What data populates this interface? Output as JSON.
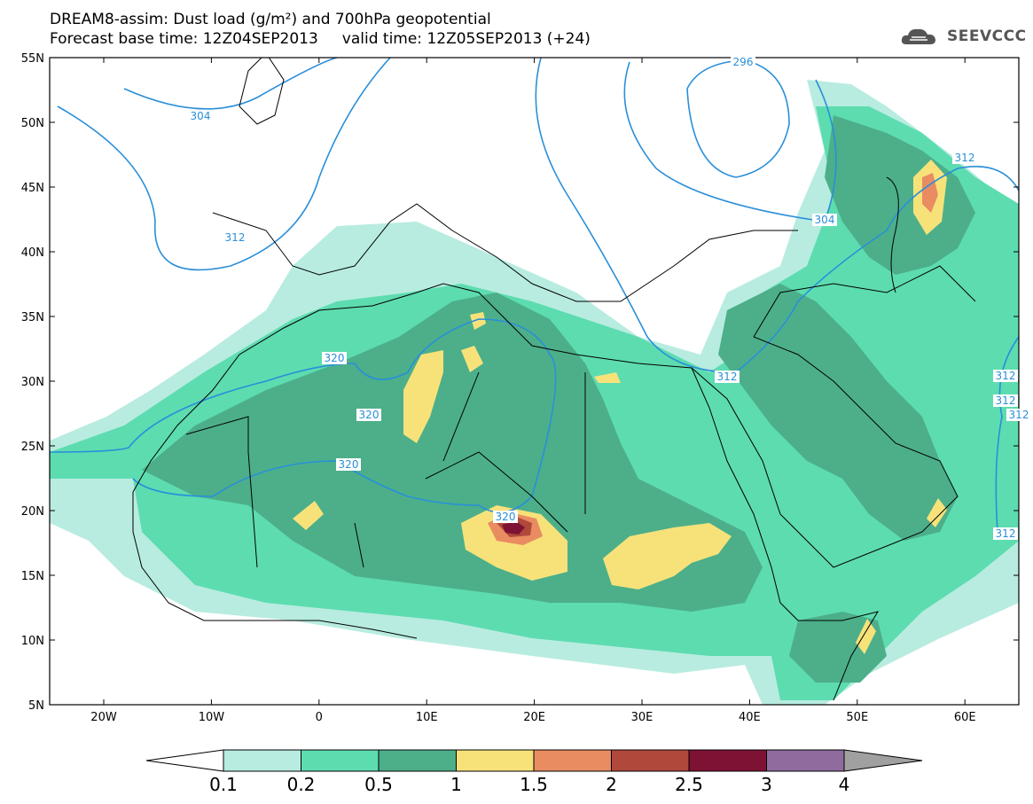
{
  "title": {
    "line1": "DREAM8-assim: Dust load (g/m²) and 700hPa geopotential",
    "line2": "Forecast base time: 12Z04SEP2013     valid time: 12Z05SEP2013 (+24)"
  },
  "logo": {
    "text": "SEEVCCC",
    "icon": "cloud-icon"
  },
  "axes": {
    "lat_labels": [
      "55N",
      "50N",
      "45N",
      "40N",
      "35N",
      "30N",
      "25N",
      "20N",
      "15N",
      "10N",
      "5N"
    ],
    "lon_labels": [
      "20W",
      "10W",
      "0",
      "10E",
      "20E",
      "30E",
      "40E",
      "50E",
      "60E"
    ]
  },
  "contour_labels": [
    "304",
    "296",
    "312",
    "312",
    "304",
    "312",
    "320",
    "320",
    "320",
    "320",
    "312",
    "312",
    "312",
    "312"
  ],
  "colorbar": {
    "labels": [
      "0.1",
      "0.2",
      "0.5",
      "1",
      "1.5",
      "2",
      "2.5",
      "3",
      "4"
    ],
    "colors": [
      "#ffffff",
      "#b8ece0",
      "#5ddcb0",
      "#4caf8a",
      "#f7e27a",
      "#e98c62",
      "#b0483c",
      "#7e1234",
      "#8f6b9e",
      "#a0a0a0"
    ]
  },
  "colors": {
    "dust_01": "#b8ece0",
    "dust_02": "#5ddcb0",
    "dust_05": "#4caf8a",
    "dust_1": "#f7e27a",
    "dust_15": "#e98c62",
    "dust_2": "#b0483c",
    "dust_25": "#7e1234",
    "contour": "#2a8fd8"
  }
}
